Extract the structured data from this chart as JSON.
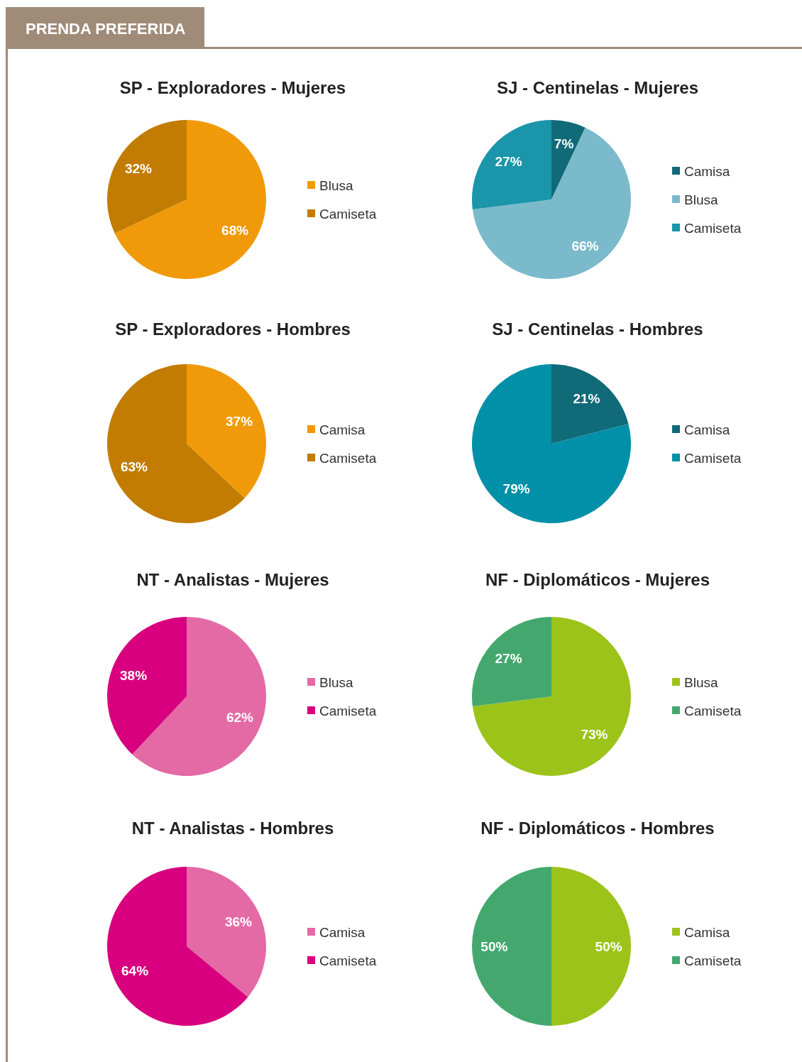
{
  "chart_data": [
    {
      "type": "pie",
      "title": "SP - Exploradores - Mujeres",
      "annotations": [
        "PRENDA PREFERIDA"
      ],
      "categories": [
        "Blusa",
        "Camiseta"
      ],
      "values": [
        68,
        32
      ],
      "value_labels": [
        "68%",
        "32%"
      ],
      "colors": [
        "#f09a0a",
        "#c27c02"
      ],
      "legend": "right"
    },
    {
      "type": "pie",
      "title": "SJ - Centinelas - Mujeres",
      "categories": [
        "Camisa",
        "Blusa",
        "Camiseta"
      ],
      "values": [
        7,
        66,
        27
      ],
      "value_labels": [
        "7%",
        "66%",
        "27%"
      ],
      "colors": [
        "#106a78",
        "#7bbacb",
        "#1a95aa"
      ],
      "legend": "right"
    },
    {
      "type": "pie",
      "title": "SP - Exploradores - Hombres",
      "categories": [
        "Camisa",
        "Camiseta"
      ],
      "values": [
        37,
        63
      ],
      "value_labels": [
        "37%",
        "63%"
      ],
      "colors": [
        "#f09a0a",
        "#c27c02"
      ],
      "legend": "right"
    },
    {
      "type": "pie",
      "title": "SJ - Centinelas - Hombres",
      "categories": [
        "Camisa",
        "Camiseta"
      ],
      "values": [
        21,
        79
      ],
      "value_labels": [
        "21%",
        "79%"
      ],
      "colors": [
        "#106a78",
        "#0090a8"
      ],
      "legend": "right"
    },
    {
      "type": "pie",
      "title": "NT - Analistas - Mujeres",
      "categories": [
        "Blusa",
        "Camiseta"
      ],
      "values": [
        62,
        38
      ],
      "value_labels": [
        "62%",
        "38%"
      ],
      "colors": [
        "#e46aa6",
        "#d8007e"
      ],
      "legend": "right"
    },
    {
      "type": "pie",
      "title": "NF - Diplomáticos - Mujeres",
      "categories": [
        "Blusa",
        "Camiseta"
      ],
      "values": [
        73,
        27
      ],
      "value_labels": [
        "73%",
        "27%"
      ],
      "colors": [
        "#9cc31a",
        "#44a86e"
      ],
      "legend": "right"
    },
    {
      "type": "pie",
      "title": "NT - Analistas - Hombres",
      "categories": [
        "Camisa",
        "Camiseta"
      ],
      "values": [
        36,
        64
      ],
      "value_labels": [
        "36%",
        "64%"
      ],
      "colors": [
        "#e46aa6",
        "#d8007e"
      ],
      "legend": "right"
    },
    {
      "type": "pie",
      "title": "NF - Diplomáticos - Hombres",
      "categories": [
        "Camisa",
        "Camiseta"
      ],
      "values": [
        50,
        50
      ],
      "value_labels": [
        "50%",
        "50%"
      ],
      "colors": [
        "#9cc31a",
        "#44a86e"
      ],
      "legend": "right"
    }
  ]
}
